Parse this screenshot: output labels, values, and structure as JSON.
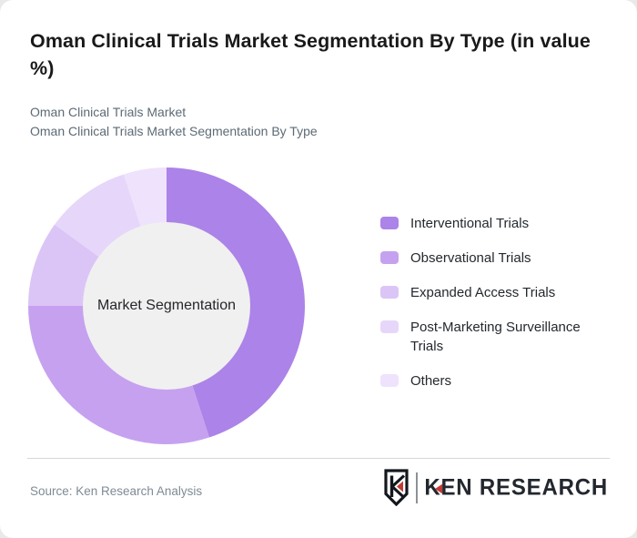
{
  "page": {
    "title": "Oman Clinical Trials Market Segmentation By Type (in value %)",
    "subtitle_line1": "Oman Clinical Trials Market",
    "subtitle_line2": "Oman Clinical Trials Market Segmentation By Type"
  },
  "chart_data": {
    "type": "pie",
    "variant": "donut",
    "title": "Oman Clinical Trials Market Segmentation By Type (in value %)",
    "center_label": "Market Segmentation",
    "unit": "%",
    "start_angle_deg": 0,
    "direction": "clockwise",
    "legend_position": "right",
    "inner_circle_color": "#f0f0f0",
    "segments": [
      {
        "label": "Interventional Trials",
        "value": 45,
        "color": "#ac83e8"
      },
      {
        "label": "Observational Trials",
        "value": 30,
        "color": "#c6a1ef"
      },
      {
        "label": "Expanded Access Trials",
        "value": 10,
        "color": "#dbc5f6"
      },
      {
        "label": "Post-Marketing Surveillance Trials",
        "value": 10,
        "color": "#e6d7fa"
      },
      {
        "label": "Others",
        "value": 5,
        "color": "#efe2fc"
      }
    ]
  },
  "footer": {
    "source": "Source: Ken Research Analysis",
    "logo_k": "K",
    "logo_rest": "EN RESEARCH",
    "logo_accent_color": "#c23b34"
  }
}
